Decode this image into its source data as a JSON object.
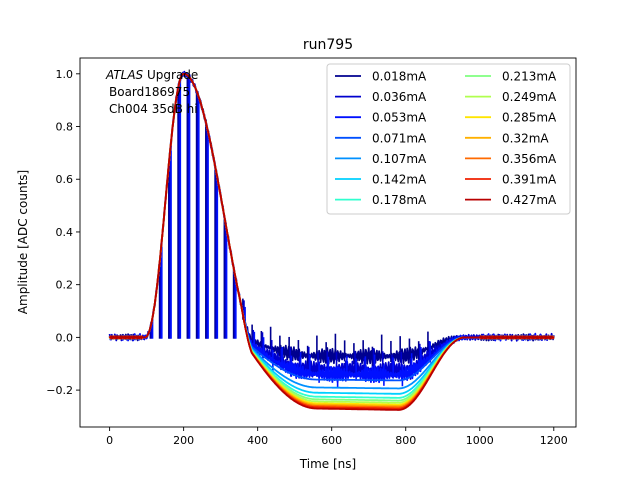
{
  "chart_data": {
    "type": "line",
    "title": "run795",
    "xlabel": "Time [ns]",
    "ylabel": "Amplitude [ADC counts]",
    "xlim": [
      -80,
      1260
    ],
    "ylim": [
      -0.34,
      1.06
    ],
    "xticks": [
      0,
      200,
      400,
      600,
      800,
      1000,
      1200
    ],
    "yticks": [
      -0.2,
      0.0,
      0.2,
      0.4,
      0.6,
      0.8,
      1.0
    ],
    "xtick_labels": [
      "0",
      "200",
      "400",
      "600",
      "800",
      "1000",
      "1200"
    ],
    "ytick_labels": [
      "−0.2",
      "0.0",
      "0.2",
      "0.4",
      "0.6",
      "0.8",
      "1.0"
    ],
    "annotation": {
      "line1_italic": "ATLAS",
      "line1_rest": " Upgrade",
      "line2": "Board186975",
      "line3": "Ch004 35dB hi"
    },
    "legend_position": "top-right",
    "series": [
      {
        "name": "0.018mA",
        "color": "#00008f",
        "undershoot": -0.07,
        "spikes": true
      },
      {
        "name": "0.036mA",
        "color": "#0000ce",
        "undershoot": -0.12,
        "spikes": true
      },
      {
        "name": "0.053mA",
        "color": "#0010ff",
        "undershoot": -0.14,
        "spikes": true
      },
      {
        "name": "0.071mA",
        "color": "#0050ff",
        "undershoot": -0.16,
        "spikes": false
      },
      {
        "name": "0.107mA",
        "color": "#0090ff",
        "undershoot": -0.19,
        "spikes": false
      },
      {
        "name": "0.142mA",
        "color": "#00d0ff",
        "undershoot": -0.21,
        "spikes": false
      },
      {
        "name": "0.178mA",
        "color": "#30ffcf",
        "undershoot": -0.225,
        "spikes": false
      },
      {
        "name": "0.213mA",
        "color": "#7fff7f",
        "undershoot": -0.235,
        "spikes": false
      },
      {
        "name": "0.249mA",
        "color": "#b0ff4f",
        "undershoot": -0.243,
        "spikes": false
      },
      {
        "name": "0.285mA",
        "color": "#ffe500",
        "undershoot": -0.25,
        "spikes": false
      },
      {
        "name": "0.32mA",
        "color": "#ffb000",
        "undershoot": -0.255,
        "spikes": false
      },
      {
        "name": "0.356mA",
        "color": "#ff6a00",
        "undershoot": -0.26,
        "spikes": false
      },
      {
        "name": "0.391mA",
        "color": "#f02000",
        "undershoot": -0.265,
        "spikes": false
      },
      {
        "name": "0.427mA",
        "color": "#b80000",
        "undershoot": -0.27,
        "spikes": false
      }
    ]
  }
}
